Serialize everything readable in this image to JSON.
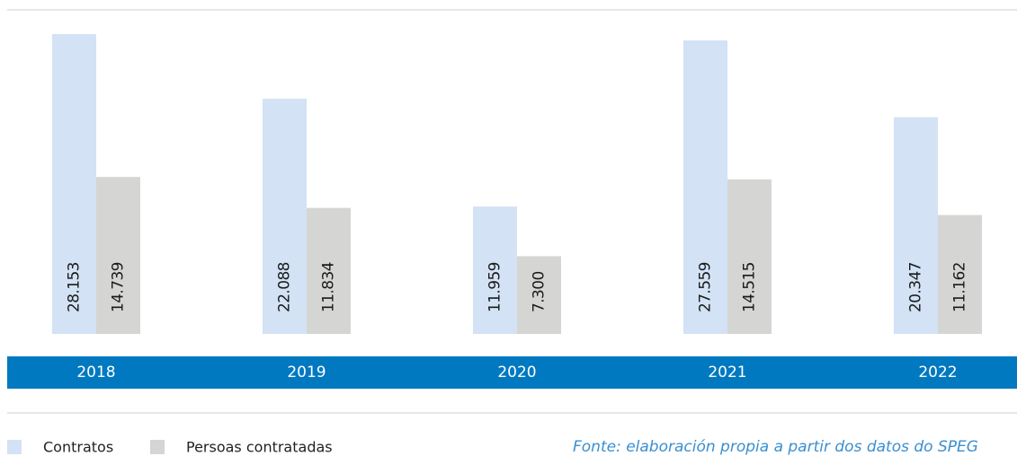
{
  "chart_data": {
    "type": "bar",
    "categories": [
      "2018",
      "2019",
      "2020",
      "2021",
      "2022"
    ],
    "series": [
      {
        "name": "Contratos",
        "color": "#d3e2f5",
        "values": [
          28153,
          22088,
          11959,
          27559,
          20347
        ],
        "value_labels": [
          "28.153",
          "22.088",
          "11.959",
          "27.559",
          "20.347"
        ]
      },
      {
        "name": "Persoas contratadas",
        "color": "#d5d6d3",
        "values": [
          14739,
          11834,
          7300,
          14515,
          11162
        ],
        "value_labels": [
          "14.739",
          "11.834",
          "7.300",
          "14.515",
          "11.162"
        ]
      }
    ],
    "band_color": "#0079c1",
    "source": "Fonte: elaboración propia a partir dos datos do SPEG"
  }
}
